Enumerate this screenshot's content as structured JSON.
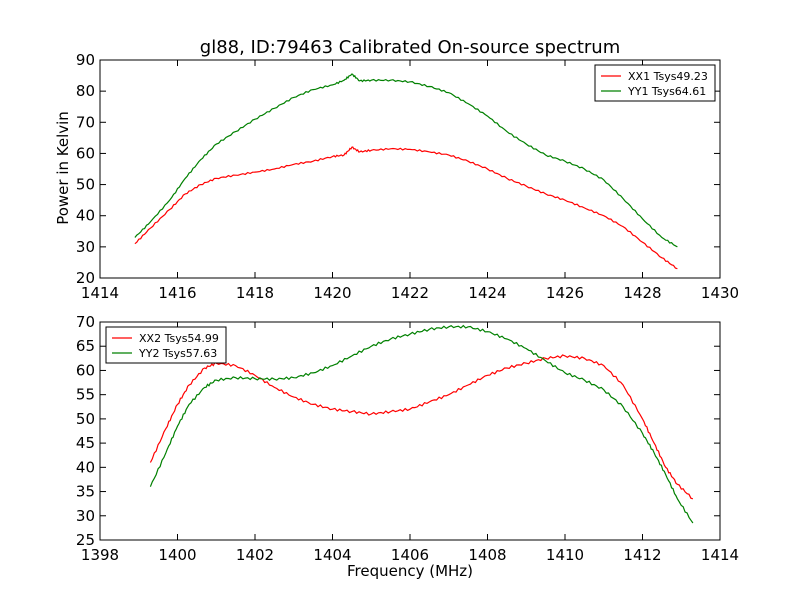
{
  "chart_data": [
    {
      "type": "line",
      "title": "gl88, ID:79463 Calibrated On-source spectrum",
      "xlabel": "",
      "ylabel": "Power in Kelvin",
      "xlim": [
        1414,
        1430
      ],
      "ylim": [
        20,
        90
      ],
      "xticks": [
        "1414",
        "1416",
        "1418",
        "1420",
        "1422",
        "1424",
        "1426",
        "1428",
        "1430"
      ],
      "yticks": [
        "20",
        "30",
        "40",
        "50",
        "60",
        "70",
        "80",
        "90"
      ],
      "legend_position": "top-right",
      "grid": false,
      "series": [
        {
          "name": "XX1 Tsys49.23",
          "color": "#ff0000",
          "x": [
            1414.9,
            1415.3,
            1415.8,
            1416.2,
            1416.6,
            1417.0,
            1417.5,
            1418.0,
            1418.5,
            1419.0,
            1419.5,
            1420.0,
            1420.3,
            1420.5,
            1420.7,
            1421.0,
            1421.5,
            1422.0,
            1422.5,
            1423.0,
            1423.5,
            1424.0,
            1424.5,
            1425.0,
            1425.5,
            1426.0,
            1426.5,
            1427.0,
            1427.5,
            1428.0,
            1428.5,
            1428.9
          ],
          "y": [
            31,
            36,
            42,
            47,
            50,
            52,
            53,
            54,
            55,
            56.5,
            57.5,
            59,
            59.5,
            62,
            60.5,
            61,
            61.5,
            61.3,
            60.5,
            59.5,
            57.5,
            55,
            52,
            49.5,
            47,
            45,
            42.5,
            40,
            36.5,
            31.5,
            26.5,
            23
          ]
        },
        {
          "name": "YY1 Tsys64.61",
          "color": "#008000",
          "x": [
            1414.9,
            1415.3,
            1415.8,
            1416.2,
            1416.6,
            1417.0,
            1417.5,
            1418.0,
            1418.5,
            1419.0,
            1419.5,
            1420.0,
            1420.3,
            1420.5,
            1420.7,
            1421.0,
            1421.5,
            1422.0,
            1422.5,
            1423.0,
            1423.5,
            1424.0,
            1424.5,
            1425.0,
            1425.5,
            1426.0,
            1426.5,
            1427.0,
            1427.5,
            1428.0,
            1428.5,
            1428.9
          ],
          "y": [
            33,
            38,
            45,
            52,
            58,
            63,
            67,
            71,
            74.5,
            78,
            80.5,
            82,
            83.5,
            85.5,
            83.3,
            83.5,
            83.5,
            83,
            81.5,
            79.5,
            76,
            72,
            67,
            63,
            59.5,
            57.5,
            55,
            51.5,
            45.5,
            39,
            33,
            30
          ]
        }
      ]
    },
    {
      "type": "line",
      "title": "",
      "xlabel": "Frequency (MHz)",
      "ylabel": "",
      "xlim": [
        1398,
        1414
      ],
      "ylim": [
        25,
        70
      ],
      "xticks": [
        "1398",
        "1400",
        "1402",
        "1404",
        "1406",
        "1408",
        "1410",
        "1412",
        "1414"
      ],
      "yticks": [
        "25",
        "30",
        "35",
        "40",
        "45",
        "50",
        "55",
        "60",
        "65",
        "70"
      ],
      "legend_position": "top-left",
      "grid": false,
      "series": [
        {
          "name": "XX2 Tsys54.99",
          "color": "#ff0000",
          "x": [
            1399.3,
            1399.7,
            1400.0,
            1400.3,
            1400.7,
            1401.0,
            1401.5,
            1402.0,
            1402.5,
            1403.0,
            1403.5,
            1404.0,
            1404.5,
            1405.0,
            1405.5,
            1406.0,
            1406.5,
            1407.0,
            1407.5,
            1408.0,
            1408.5,
            1409.0,
            1409.5,
            1410.0,
            1410.5,
            1411.0,
            1411.5,
            1412.0,
            1412.3,
            1412.6,
            1412.9,
            1413.3
          ],
          "y": [
            41,
            48,
            53,
            57,
            60.5,
            61.5,
            61,
            59,
            56.5,
            54.5,
            53,
            52,
            51.5,
            51,
            51.5,
            52,
            53.5,
            55,
            57,
            59,
            60.5,
            61.5,
            62.5,
            63,
            62.5,
            61,
            57,
            50,
            45,
            40,
            36.5,
            33.5
          ]
        },
        {
          "name": "YY2 Tsys57.63",
          "color": "#008000",
          "x": [
            1399.3,
            1399.7,
            1400.0,
            1400.3,
            1400.7,
            1401.0,
            1401.5,
            1402.0,
            1402.5,
            1403.0,
            1403.5,
            1404.0,
            1404.5,
            1405.0,
            1405.5,
            1406.0,
            1406.5,
            1407.0,
            1407.5,
            1408.0,
            1408.5,
            1409.0,
            1409.5,
            1410.0,
            1410.5,
            1411.0,
            1411.5,
            1412.0,
            1412.3,
            1412.6,
            1412.9,
            1413.3
          ],
          "y": [
            36,
            43,
            48.5,
            53,
            56.5,
            58,
            58.5,
            58.3,
            58.2,
            58.5,
            59.5,
            61,
            63,
            65,
            66.5,
            67.5,
            68.5,
            69,
            69,
            68,
            66.5,
            64.5,
            62,
            59.5,
            58,
            56,
            52.5,
            47,
            43,
            38.5,
            33.5,
            28.5
          ]
        }
      ]
    }
  ]
}
